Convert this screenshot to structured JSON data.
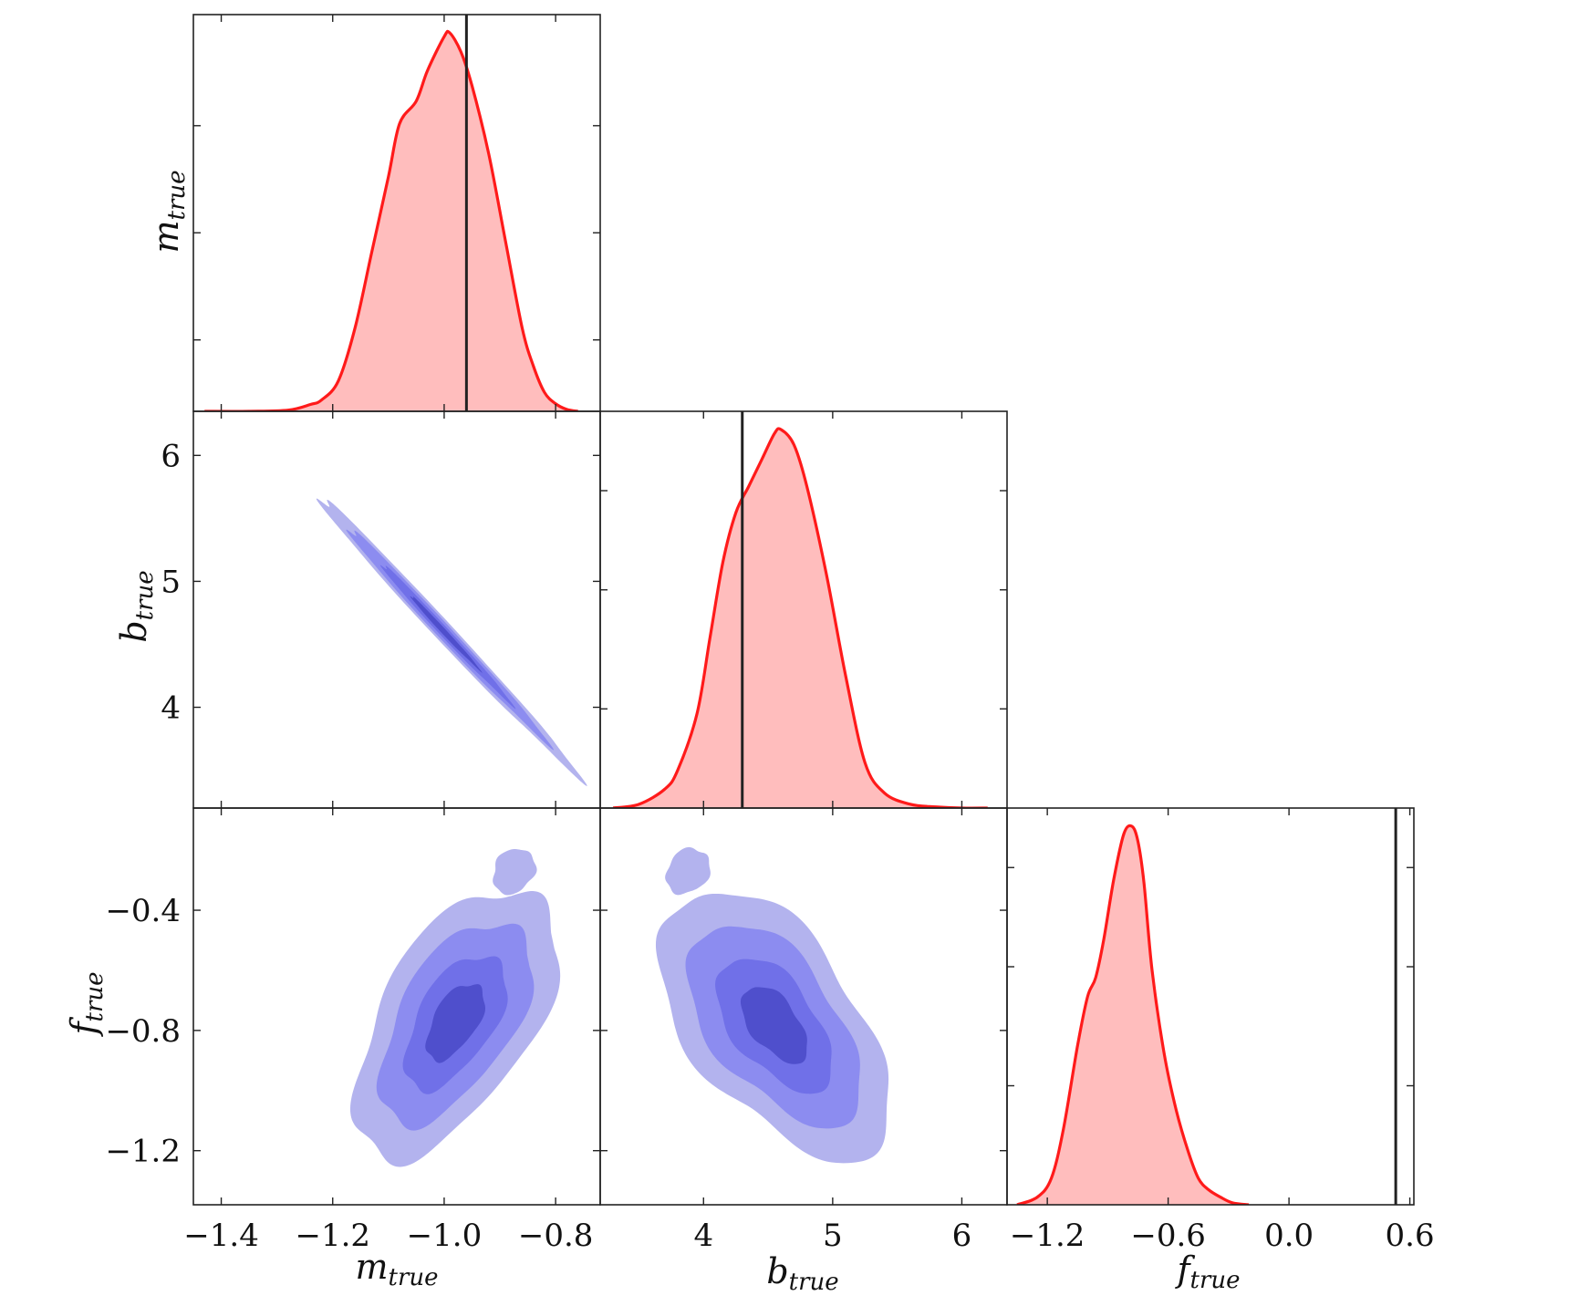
{
  "chart_data": {
    "type": "corner",
    "parameters": [
      {
        "key": "m",
        "label_main": "m",
        "label_sub": "true"
      },
      {
        "key": "b",
        "label_main": "b",
        "label_sub": "true"
      },
      {
        "key": "f",
        "label_main": "f",
        "label_sub": "true"
      }
    ],
    "truth_lines": {
      "m": -0.96,
      "b": 4.3,
      "f": 0.53
    },
    "axes": {
      "m": {
        "range": [
          -1.45,
          -0.72
        ],
        "ticks": [
          -1.4,
          -1.2,
          -1.0,
          -0.8
        ],
        "tick_labels": [
          "−1.4",
          "−1.2",
          "−1.0",
          "−0.8"
        ]
      },
      "b": {
        "range": [
          3.2,
          6.35
        ],
        "ticks": [
          4,
          5,
          6
        ],
        "tick_labels": [
          "4",
          "5",
          "6"
        ],
        "y_ticks": [
          4,
          5,
          6
        ],
        "y_tick_labels": [
          "4",
          "5",
          "6"
        ]
      },
      "f": {
        "range": [
          -1.4,
          0.62
        ],
        "ticks": [
          -1.2,
          -0.6,
          0.0,
          0.6
        ],
        "tick_labels": [
          "−1.2",
          "−0.6",
          "0.0",
          "0.6"
        ],
        "y_range": [
          -1.38,
          -0.06
        ],
        "y_ticks": [
          -0.4,
          -0.8,
          -1.2
        ],
        "y_tick_labels": [
          "−0.4",
          "−0.8",
          "−1.2"
        ]
      }
    },
    "marginals": [
      {
        "param": "m",
        "color": "#ff1a1a",
        "fill": "#ffbdbd",
        "x": [
          -1.43,
          -1.35,
          -1.28,
          -1.24,
          -1.22,
          -1.19,
          -1.16,
          -1.13,
          -1.1,
          -1.08,
          -1.05,
          -1.03,
          -1.0,
          -0.99,
          -0.97,
          -0.95,
          -0.92,
          -0.89,
          -0.86,
          -0.84,
          -0.82,
          -0.8,
          -0.78,
          -0.76
        ],
        "y": [
          0.0,
          0.0,
          0.003,
          0.018,
          0.03,
          0.08,
          0.22,
          0.42,
          0.62,
          0.76,
          0.82,
          0.9,
          0.99,
          1.0,
          0.95,
          0.86,
          0.68,
          0.45,
          0.22,
          0.12,
          0.05,
          0.02,
          0.005,
          0.0
        ]
      },
      {
        "param": "b",
        "color": "#ff1a1a",
        "fill": "#ffbdbd",
        "x": [
          3.3,
          3.5,
          3.7,
          3.8,
          3.95,
          4.05,
          4.15,
          4.25,
          4.35,
          4.45,
          4.55,
          4.6,
          4.7,
          4.8,
          4.95,
          5.1,
          5.25,
          5.4,
          5.6,
          5.8,
          6.0,
          6.2
        ],
        "y": [
          0.0,
          0.01,
          0.05,
          0.1,
          0.25,
          0.45,
          0.65,
          0.78,
          0.85,
          0.92,
          0.99,
          1.0,
          0.96,
          0.85,
          0.62,
          0.35,
          0.12,
          0.04,
          0.01,
          0.003,
          0.0,
          0.0
        ]
      },
      {
        "param": "f",
        "color": "#ff1a1a",
        "fill": "#ffbdbd",
        "x": [
          -1.35,
          -1.25,
          -1.18,
          -1.12,
          -1.05,
          -1.0,
          -0.96,
          -0.92,
          -0.87,
          -0.82,
          -0.78,
          -0.75,
          -0.72,
          -0.68,
          -0.62,
          -0.56,
          -0.5,
          -0.45,
          -0.4,
          -0.34,
          -0.28,
          -0.2
        ],
        "y": [
          0.0,
          0.02,
          0.07,
          0.2,
          0.42,
          0.55,
          0.6,
          0.7,
          0.86,
          0.98,
          1.0,
          0.96,
          0.85,
          0.62,
          0.4,
          0.25,
          0.14,
          0.07,
          0.04,
          0.02,
          0.005,
          0.0
        ]
      }
    ],
    "contour_panels": [
      {
        "x_param": "m",
        "y_param": "b",
        "shape": "ellipse",
        "center": [
          -1.0,
          4.6
        ],
        "sd": [
          0.078,
          0.37
        ],
        "corr": -0.995,
        "levels_sigma": [
          3.0,
          2.3,
          1.5,
          0.8
        ],
        "colors": [
          "#b3b3ee",
          "#8c8cf0",
          "#7070e8",
          "#4f4fcc"
        ]
      },
      {
        "x_param": "m",
        "y_param": "f",
        "shape": "ellipse",
        "center": [
          -0.98,
          -0.77
        ],
        "sd": [
          0.065,
          0.16
        ],
        "corr": 0.55,
        "levels_sigma": [
          2.8,
          2.1,
          1.4,
          0.8
        ],
        "colors": [
          "#b3b3ee",
          "#8c8cf0",
          "#7070e8",
          "#4f4fcc"
        ],
        "extra_blobs": [
          {
            "center": [
              -0.875,
              -0.27
            ],
            "sd": [
              0.02,
              0.04
            ],
            "level": 1.9
          }
        ]
      },
      {
        "x_param": "b",
        "y_param": "f",
        "shape": "ellipse",
        "center": [
          4.55,
          -0.78
        ],
        "sd": [
          0.32,
          0.16
        ],
        "corr": -0.55,
        "levels_sigma": [
          2.8,
          2.1,
          1.4,
          0.8
        ],
        "colors": [
          "#b3b3ee",
          "#8c8cf0",
          "#7070e8",
          "#4f4fcc"
        ],
        "extra_blobs": [
          {
            "center": [
              3.88,
              -0.27
            ],
            "sd": [
              0.09,
              0.04
            ],
            "level": 1.9
          }
        ]
      }
    ]
  }
}
